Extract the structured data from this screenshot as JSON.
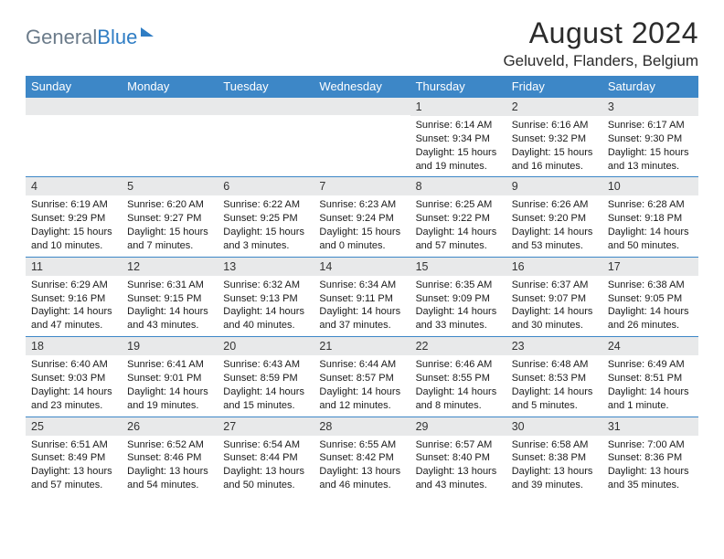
{
  "brand": {
    "general": "General",
    "blue": "Blue"
  },
  "title": "August 2024",
  "location": "Geluveld, Flanders, Belgium",
  "colors": {
    "header_bg": "#3d87c7",
    "daynum_bg": "#e8e9ea",
    "rule": "#3d87c7",
    "logo_gray": "#6b7b8a",
    "logo_blue": "#2f7dc4"
  },
  "weekdays": [
    "Sunday",
    "Monday",
    "Tuesday",
    "Wednesday",
    "Thursday",
    "Friday",
    "Saturday"
  ],
  "weeks": [
    [
      {
        "n": "",
        "sunrise": "",
        "sunset": "",
        "daylight1": "",
        "daylight2": ""
      },
      {
        "n": "",
        "sunrise": "",
        "sunset": "",
        "daylight1": "",
        "daylight2": ""
      },
      {
        "n": "",
        "sunrise": "",
        "sunset": "",
        "daylight1": "",
        "daylight2": ""
      },
      {
        "n": "",
        "sunrise": "",
        "sunset": "",
        "daylight1": "",
        "daylight2": ""
      },
      {
        "n": "1",
        "sunrise": "Sunrise: 6:14 AM",
        "sunset": "Sunset: 9:34 PM",
        "daylight1": "Daylight: 15 hours",
        "daylight2": "and 19 minutes."
      },
      {
        "n": "2",
        "sunrise": "Sunrise: 6:16 AM",
        "sunset": "Sunset: 9:32 PM",
        "daylight1": "Daylight: 15 hours",
        "daylight2": "and 16 minutes."
      },
      {
        "n": "3",
        "sunrise": "Sunrise: 6:17 AM",
        "sunset": "Sunset: 9:30 PM",
        "daylight1": "Daylight: 15 hours",
        "daylight2": "and 13 minutes."
      }
    ],
    [
      {
        "n": "4",
        "sunrise": "Sunrise: 6:19 AM",
        "sunset": "Sunset: 9:29 PM",
        "daylight1": "Daylight: 15 hours",
        "daylight2": "and 10 minutes."
      },
      {
        "n": "5",
        "sunrise": "Sunrise: 6:20 AM",
        "sunset": "Sunset: 9:27 PM",
        "daylight1": "Daylight: 15 hours",
        "daylight2": "and 7 minutes."
      },
      {
        "n": "6",
        "sunrise": "Sunrise: 6:22 AM",
        "sunset": "Sunset: 9:25 PM",
        "daylight1": "Daylight: 15 hours",
        "daylight2": "and 3 minutes."
      },
      {
        "n": "7",
        "sunrise": "Sunrise: 6:23 AM",
        "sunset": "Sunset: 9:24 PM",
        "daylight1": "Daylight: 15 hours",
        "daylight2": "and 0 minutes."
      },
      {
        "n": "8",
        "sunrise": "Sunrise: 6:25 AM",
        "sunset": "Sunset: 9:22 PM",
        "daylight1": "Daylight: 14 hours",
        "daylight2": "and 57 minutes."
      },
      {
        "n": "9",
        "sunrise": "Sunrise: 6:26 AM",
        "sunset": "Sunset: 9:20 PM",
        "daylight1": "Daylight: 14 hours",
        "daylight2": "and 53 minutes."
      },
      {
        "n": "10",
        "sunrise": "Sunrise: 6:28 AM",
        "sunset": "Sunset: 9:18 PM",
        "daylight1": "Daylight: 14 hours",
        "daylight2": "and 50 minutes."
      }
    ],
    [
      {
        "n": "11",
        "sunrise": "Sunrise: 6:29 AM",
        "sunset": "Sunset: 9:16 PM",
        "daylight1": "Daylight: 14 hours",
        "daylight2": "and 47 minutes."
      },
      {
        "n": "12",
        "sunrise": "Sunrise: 6:31 AM",
        "sunset": "Sunset: 9:15 PM",
        "daylight1": "Daylight: 14 hours",
        "daylight2": "and 43 minutes."
      },
      {
        "n": "13",
        "sunrise": "Sunrise: 6:32 AM",
        "sunset": "Sunset: 9:13 PM",
        "daylight1": "Daylight: 14 hours",
        "daylight2": "and 40 minutes."
      },
      {
        "n": "14",
        "sunrise": "Sunrise: 6:34 AM",
        "sunset": "Sunset: 9:11 PM",
        "daylight1": "Daylight: 14 hours",
        "daylight2": "and 37 minutes."
      },
      {
        "n": "15",
        "sunrise": "Sunrise: 6:35 AM",
        "sunset": "Sunset: 9:09 PM",
        "daylight1": "Daylight: 14 hours",
        "daylight2": "and 33 minutes."
      },
      {
        "n": "16",
        "sunrise": "Sunrise: 6:37 AM",
        "sunset": "Sunset: 9:07 PM",
        "daylight1": "Daylight: 14 hours",
        "daylight2": "and 30 minutes."
      },
      {
        "n": "17",
        "sunrise": "Sunrise: 6:38 AM",
        "sunset": "Sunset: 9:05 PM",
        "daylight1": "Daylight: 14 hours",
        "daylight2": "and 26 minutes."
      }
    ],
    [
      {
        "n": "18",
        "sunrise": "Sunrise: 6:40 AM",
        "sunset": "Sunset: 9:03 PM",
        "daylight1": "Daylight: 14 hours",
        "daylight2": "and 23 minutes."
      },
      {
        "n": "19",
        "sunrise": "Sunrise: 6:41 AM",
        "sunset": "Sunset: 9:01 PM",
        "daylight1": "Daylight: 14 hours",
        "daylight2": "and 19 minutes."
      },
      {
        "n": "20",
        "sunrise": "Sunrise: 6:43 AM",
        "sunset": "Sunset: 8:59 PM",
        "daylight1": "Daylight: 14 hours",
        "daylight2": "and 15 minutes."
      },
      {
        "n": "21",
        "sunrise": "Sunrise: 6:44 AM",
        "sunset": "Sunset: 8:57 PM",
        "daylight1": "Daylight: 14 hours",
        "daylight2": "and 12 minutes."
      },
      {
        "n": "22",
        "sunrise": "Sunrise: 6:46 AM",
        "sunset": "Sunset: 8:55 PM",
        "daylight1": "Daylight: 14 hours",
        "daylight2": "and 8 minutes."
      },
      {
        "n": "23",
        "sunrise": "Sunrise: 6:48 AM",
        "sunset": "Sunset: 8:53 PM",
        "daylight1": "Daylight: 14 hours",
        "daylight2": "and 5 minutes."
      },
      {
        "n": "24",
        "sunrise": "Sunrise: 6:49 AM",
        "sunset": "Sunset: 8:51 PM",
        "daylight1": "Daylight: 14 hours",
        "daylight2": "and 1 minute."
      }
    ],
    [
      {
        "n": "25",
        "sunrise": "Sunrise: 6:51 AM",
        "sunset": "Sunset: 8:49 PM",
        "daylight1": "Daylight: 13 hours",
        "daylight2": "and 57 minutes."
      },
      {
        "n": "26",
        "sunrise": "Sunrise: 6:52 AM",
        "sunset": "Sunset: 8:46 PM",
        "daylight1": "Daylight: 13 hours",
        "daylight2": "and 54 minutes."
      },
      {
        "n": "27",
        "sunrise": "Sunrise: 6:54 AM",
        "sunset": "Sunset: 8:44 PM",
        "daylight1": "Daylight: 13 hours",
        "daylight2": "and 50 minutes."
      },
      {
        "n": "28",
        "sunrise": "Sunrise: 6:55 AM",
        "sunset": "Sunset: 8:42 PM",
        "daylight1": "Daylight: 13 hours",
        "daylight2": "and 46 minutes."
      },
      {
        "n": "29",
        "sunrise": "Sunrise: 6:57 AM",
        "sunset": "Sunset: 8:40 PM",
        "daylight1": "Daylight: 13 hours",
        "daylight2": "and 43 minutes."
      },
      {
        "n": "30",
        "sunrise": "Sunrise: 6:58 AM",
        "sunset": "Sunset: 8:38 PM",
        "daylight1": "Daylight: 13 hours",
        "daylight2": "and 39 minutes."
      },
      {
        "n": "31",
        "sunrise": "Sunrise: 7:00 AM",
        "sunset": "Sunset: 8:36 PM",
        "daylight1": "Daylight: 13 hours",
        "daylight2": "and 35 minutes."
      }
    ]
  ]
}
